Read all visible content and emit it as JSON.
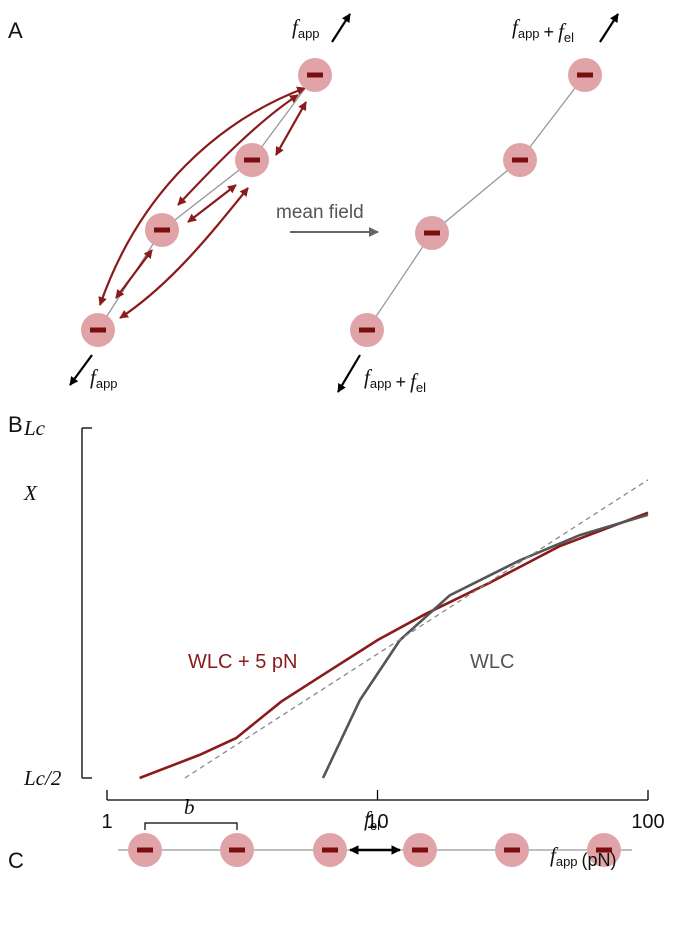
{
  "panels": {
    "a": "A",
    "b": "B",
    "c": "C"
  },
  "panel_a": {
    "left_top_force": [
      {
        "symbol": "f",
        "sub": "app"
      }
    ],
    "left_bottom_force": [
      {
        "symbol": "f",
        "sub": "app"
      }
    ],
    "arrow_label": "mean field",
    "right_top_force": [
      {
        "symbol": "f",
        "sub": "app"
      },
      "+",
      {
        "symbol": "f",
        "sub": "el"
      }
    ],
    "right_bottom_force": [
      {
        "symbol": "f",
        "sub": "app"
      },
      "+",
      {
        "symbol": "f",
        "sub": "el"
      }
    ]
  },
  "panel_c": {
    "spacing_label": "b",
    "force_label": [
      {
        "symbol": "f",
        "sub": "el"
      }
    ]
  },
  "chart_data": {
    "type": "line",
    "xscale": "log",
    "y_label": "X",
    "x_label": [
      {
        "symbol": "f",
        "sub": "app"
      },
      "(pN)"
    ],
    "xlim": [
      1,
      100
    ],
    "xticks": [
      1,
      10,
      100
    ],
    "ylim": [
      0.5,
      1
    ],
    "yticks": [
      {
        "value": 0.5,
        "label": "Lc/2"
      },
      {
        "value": 1,
        "label": "Lc"
      }
    ],
    "series": [
      {
        "name": "WLC + 5 pN",
        "color": "#8b1a1a",
        "x": [
          1.32,
          2.2,
          3,
          4.4,
          6.5,
          10,
          15,
          26,
          47,
          100
        ],
        "values": [
          0.5,
          0.533,
          0.557,
          0.609,
          0.651,
          0.697,
          0.734,
          0.779,
          0.831,
          0.879
        ]
      },
      {
        "name": "WLC",
        "color": "#555555",
        "x": [
          6.29,
          8.6,
          12.1,
          18.5,
          33.6,
          56,
          100
        ],
        "values": [
          0.5,
          0.611,
          0.697,
          0.761,
          0.811,
          0.847,
          0.876
        ]
      },
      {
        "color": "#888888",
        "dashed": true,
        "x": [
          1.94,
          100
        ],
        "values": [
          0.5,
          0.926
        ]
      }
    ]
  }
}
